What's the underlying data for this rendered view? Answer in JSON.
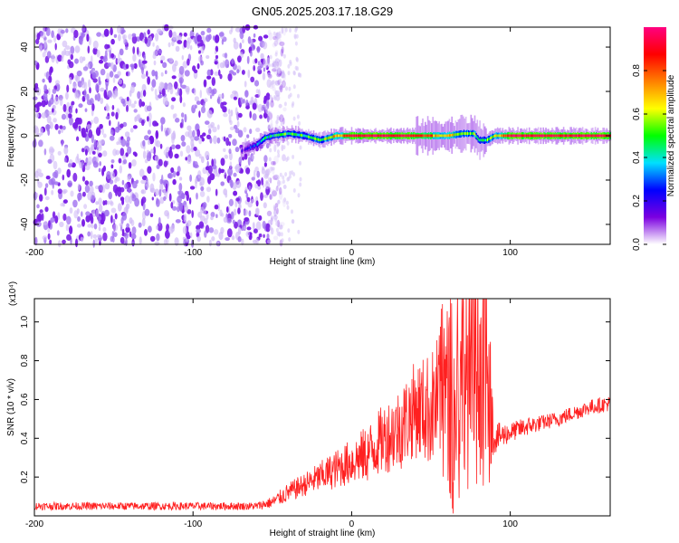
{
  "title": "GN05.2025.203.17.18.G29",
  "chart_data": [
    {
      "type": "heatmap",
      "name": "spectrogram",
      "xlabel": "Height of straight line (km)",
      "ylabel": "Frequency (Hz)",
      "xlim": [
        -200,
        163
      ],
      "ylim": [
        -49,
        49
      ],
      "xticks": [
        -200,
        -100,
        0,
        100
      ],
      "yticks": [
        -40,
        -20,
        0,
        20,
        40
      ],
      "colorbar": {
        "label": "Normalized spectral amplitude",
        "range": [
          0,
          1
        ],
        "ticks": [
          "0.0",
          "0.2",
          "0.4",
          "0.6",
          "0.8"
        ],
        "colors": [
          "#ffffff",
          "#7b00e0",
          "#0000ff",
          "#00e0ff",
          "#00ff00",
          "#ffff00",
          "#ff8000",
          "#ff0000",
          "#ff0080"
        ]
      },
      "noise_region_x": [
        -200,
        -52
      ],
      "ridge": {
        "x": [
          -70,
          -60,
          -55,
          -50,
          -40,
          -30,
          -20,
          -10,
          0,
          20,
          40,
          60,
          70,
          77,
          80,
          85,
          90,
          100,
          120,
          140,
          163
        ],
        "freq": [
          -7,
          -4,
          -1,
          0,
          1,
          0,
          -2,
          0,
          0,
          0,
          0,
          0,
          1,
          1,
          -2,
          -2,
          0,
          0,
          0,
          0,
          0
        ],
        "amplitude": [
          0.15,
          0.3,
          0.4,
          0.45,
          0.5,
          0.5,
          0.55,
          0.7,
          0.95,
          0.95,
          0.9,
          0.65,
          0.6,
          0.55,
          0.45,
          0.5,
          0.6,
          0.95,
          0.95,
          0.95,
          0.95
        ]
      }
    },
    {
      "type": "line",
      "name": "snr",
      "xlabel": "Height of straight line (km)",
      "ylabel": "SNR (10 * v/v)",
      "multiplier": "(x10⁴)",
      "xlim": [
        -200,
        163
      ],
      "ylim": [
        0.0,
        1.12
      ],
      "xticks": [
        -200,
        -100,
        0,
        100
      ],
      "yticks": [
        0.2,
        0.4,
        0.6,
        0.8,
        1.0
      ],
      "color": "#ff2020",
      "series": [
        {
          "x": [
            -200,
            -150,
            -100,
            -60,
            -50,
            -40,
            -30,
            -20,
            -10,
            0,
            10,
            20,
            30,
            40,
            50,
            55,
            60,
            65,
            70,
            75,
            80,
            85,
            90,
            100,
            110,
            120,
            130,
            140,
            150,
            163
          ],
          "y": [
            0.05,
            0.05,
            0.05,
            0.05,
            0.07,
            0.12,
            0.16,
            0.2,
            0.24,
            0.28,
            0.32,
            0.4,
            0.45,
            0.55,
            0.55,
            0.6,
            0.7,
            0.5,
            0.8,
            0.6,
            0.9,
            0.7,
            0.4,
            0.43,
            0.46,
            0.48,
            0.5,
            0.53,
            0.56,
            0.58
          ],
          "spread": [
            0.02,
            0.02,
            0.02,
            0.02,
            0.03,
            0.05,
            0.06,
            0.08,
            0.1,
            0.12,
            0.15,
            0.18,
            0.22,
            0.25,
            0.3,
            0.35,
            0.4,
            0.45,
            0.5,
            0.55,
            0.55,
            0.5,
            0.08,
            0.05,
            0.05,
            0.04,
            0.04,
            0.04,
            0.04,
            0.04
          ]
        }
      ]
    }
  ]
}
